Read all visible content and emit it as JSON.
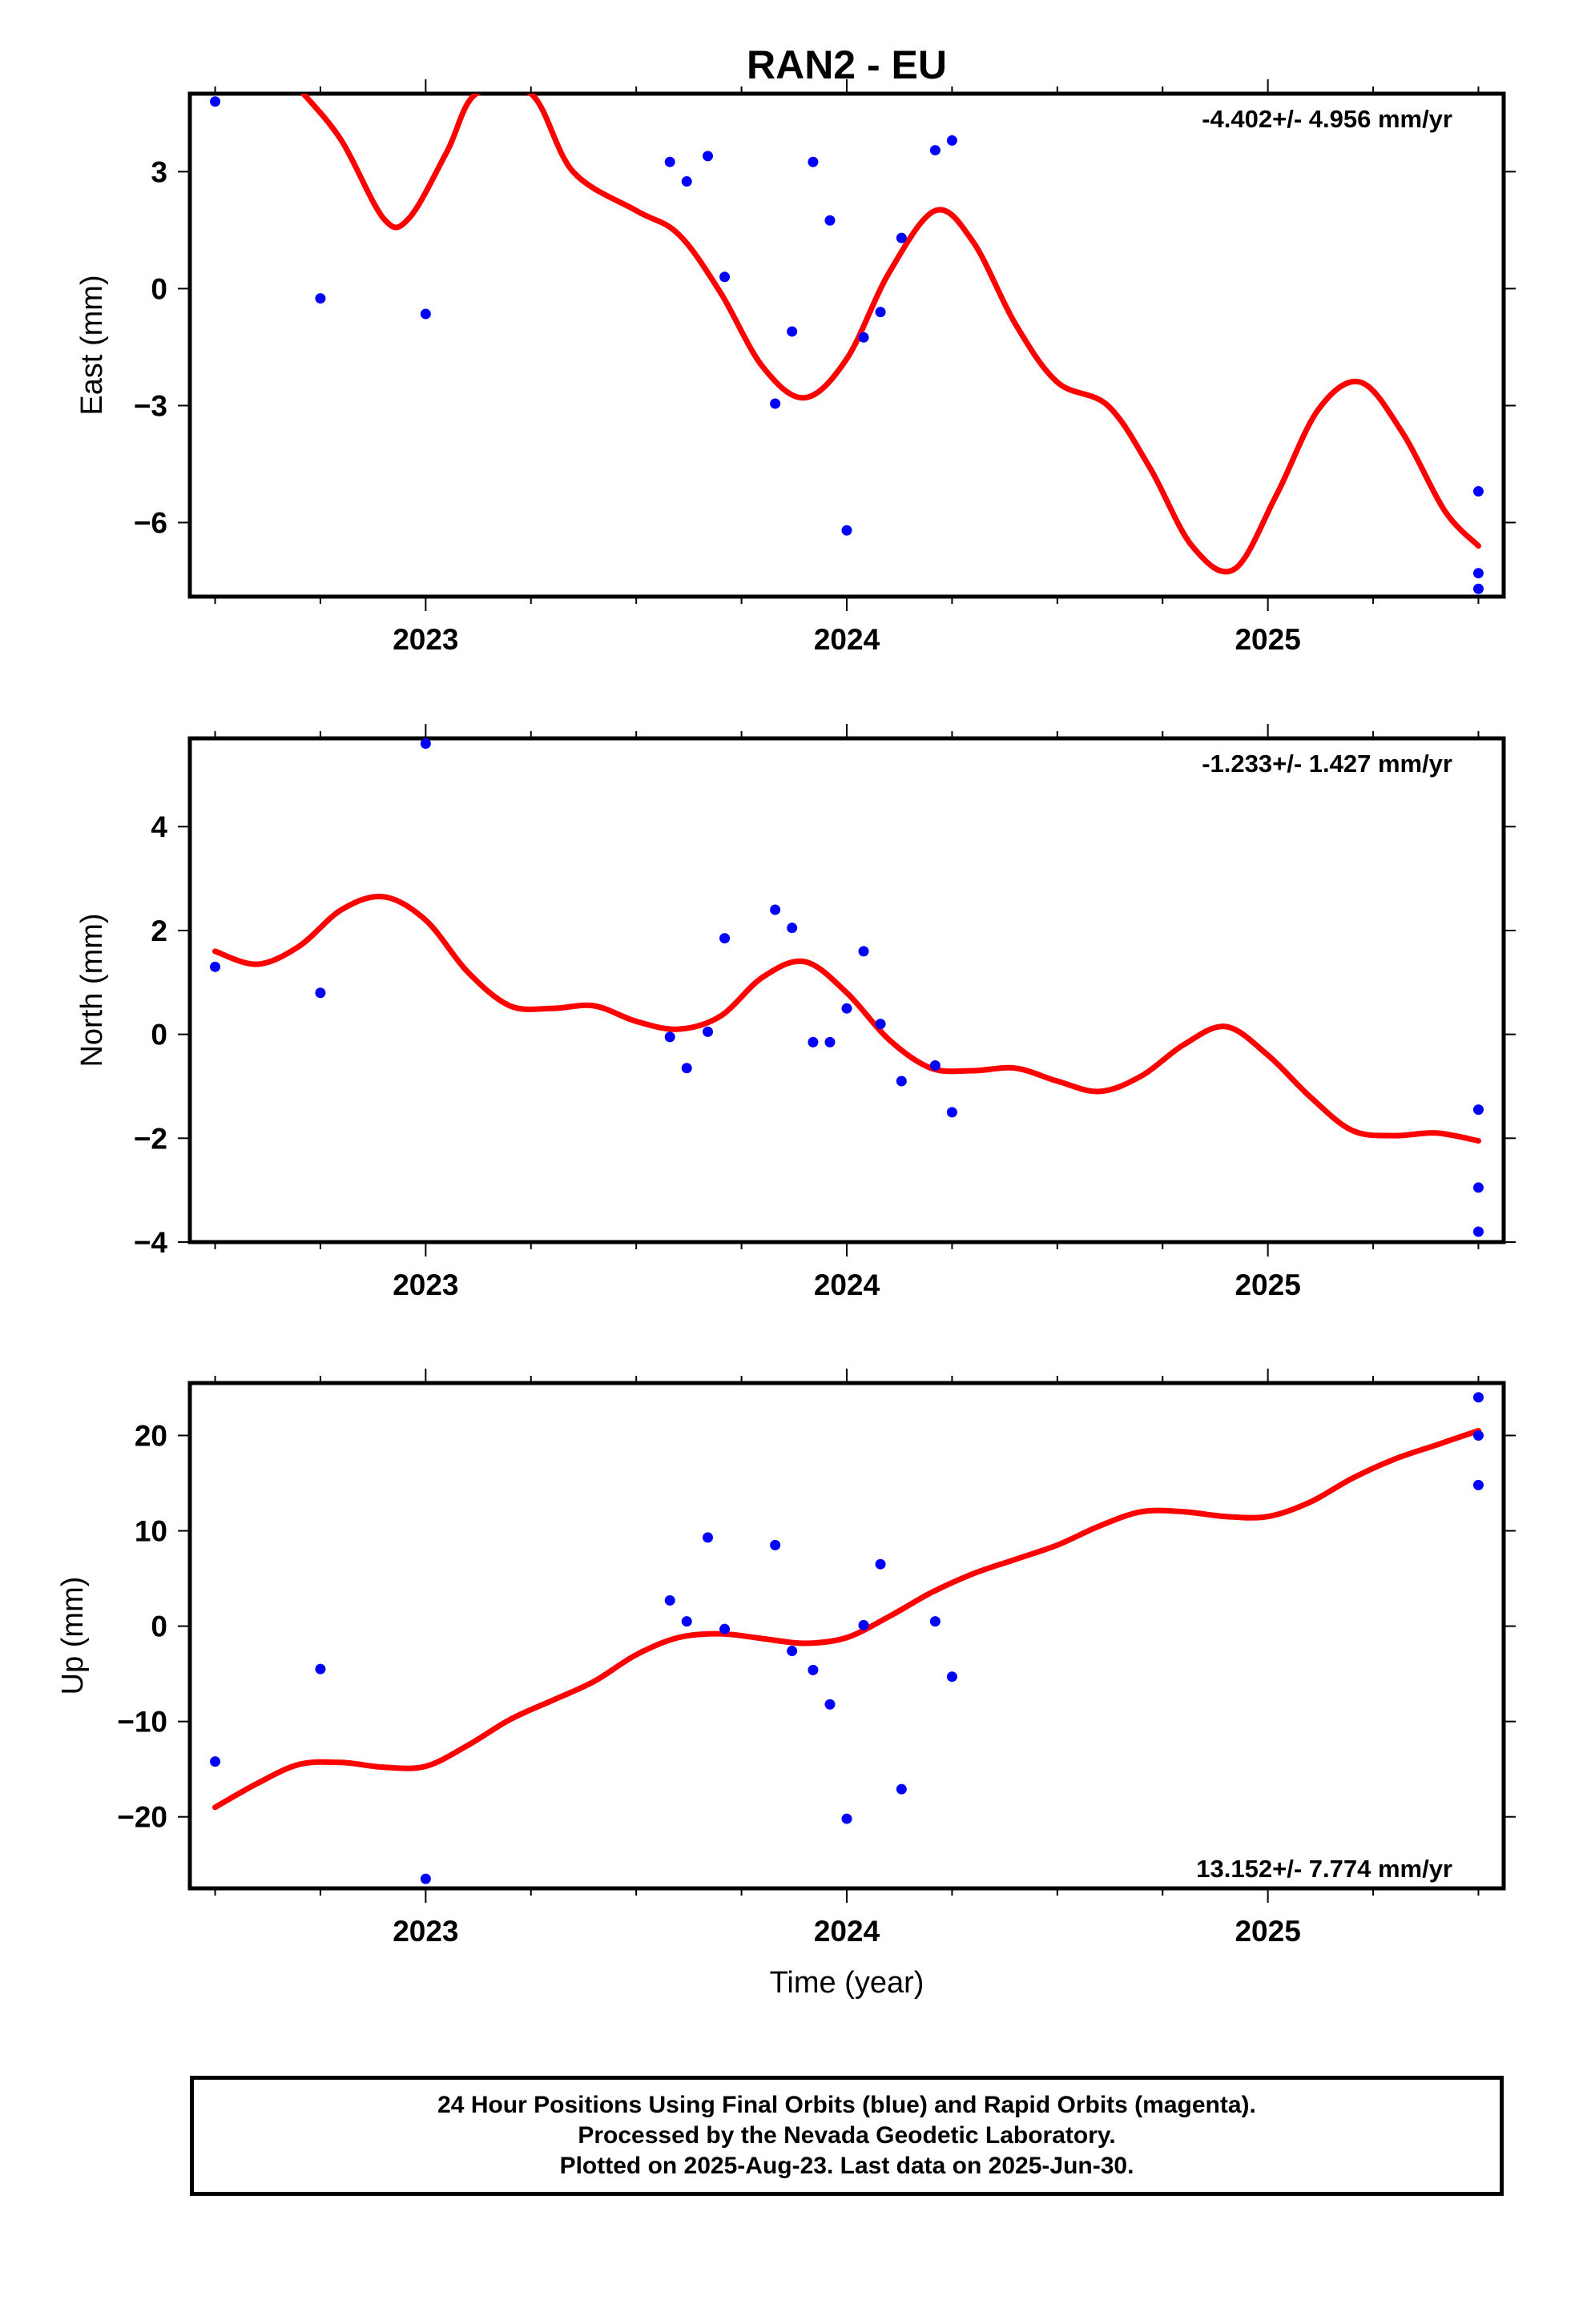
{
  "title": "RAN2 - EU",
  "colors": {
    "data_points": "#0000ff",
    "fit_curve": "#ff0000",
    "frame": "#000000"
  },
  "chart_data": [
    {
      "type": "scatter",
      "ylabel": "East (mm)",
      "xlabel": "",
      "rate_label": "-4.402+/- 4.956 mm/yr",
      "rate_position": "top-right",
      "xlim": [
        2022.44,
        2025.56
      ],
      "ylim": [
        -7.9,
        5.0
      ],
      "x_ticks": [
        2023,
        2024,
        2025
      ],
      "x_tick_labels": [
        "2023",
        "2024",
        "2025"
      ],
      "y_ticks": [
        -6,
        -3,
        0,
        3
      ],
      "y_tick_labels": [
        "−6",
        "−3",
        "0",
        "3"
      ],
      "grid": false,
      "series": [
        {
          "kind": "points",
          "x": [
            2022.5,
            2022.75,
            2023.0,
            2023.58,
            2023.62,
            2023.67,
            2023.71,
            2023.83,
            2023.87,
            2023.92,
            2023.96,
            2024.0,
            2024.04,
            2024.08,
            2024.13,
            2024.21,
            2024.25,
            2025.5,
            2025.5,
            2025.5
          ],
          "y": [
            4.8,
            -0.25,
            -0.65,
            3.25,
            2.75,
            3.4,
            0.3,
            -2.95,
            -1.1,
            3.25,
            1.75,
            -6.2,
            -1.25,
            -0.6,
            1.3,
            3.55,
            3.8,
            -5.2,
            -7.3,
            -7.7
          ]
        },
        {
          "kind": "fit",
          "x": [
            2022.71,
            2022.8,
            2022.9,
            2022.96,
            2023.05,
            2023.12,
            2023.25,
            2023.35,
            2023.5,
            2023.6,
            2023.7,
            2023.8,
            2023.9,
            2024.0,
            2024.1,
            2024.21,
            2024.3,
            2024.4,
            2024.5,
            2024.62,
            2024.72,
            2024.82,
            2024.92,
            2025.02,
            2025.12,
            2025.22,
            2025.32,
            2025.42,
            2025.5
          ],
          "y": [
            5.0,
            3.8,
            1.8,
            1.8,
            3.5,
            5.0,
            5.0,
            3.0,
            2.0,
            1.4,
            -0.1,
            -2.0,
            -2.8,
            -1.8,
            0.4,
            2.0,
            1.2,
            -0.9,
            -2.4,
            -3.0,
            -4.6,
            -6.6,
            -7.2,
            -5.3,
            -3.1,
            -2.4,
            -3.7,
            -5.7,
            -6.6
          ]
        }
      ]
    },
    {
      "type": "scatter",
      "ylabel": "North (mm)",
      "xlabel": "",
      "rate_label": "-1.233+/- 1.427 mm/yr",
      "rate_position": "top-right",
      "xlim": [
        2022.44,
        2025.56
      ],
      "ylim": [
        -4.0,
        5.7
      ],
      "x_ticks": [
        2023,
        2024,
        2025
      ],
      "x_tick_labels": [
        "2023",
        "2024",
        "2025"
      ],
      "y_ticks": [
        -4,
        -2,
        0,
        2,
        4
      ],
      "y_tick_labels": [
        "−4",
        "−2",
        "0",
        "2",
        "4"
      ],
      "grid": false,
      "series": [
        {
          "kind": "points",
          "x": [
            2022.5,
            2022.75,
            2023.0,
            2023.58,
            2023.62,
            2023.67,
            2023.71,
            2023.83,
            2023.87,
            2023.92,
            2023.96,
            2024.0,
            2024.04,
            2024.08,
            2024.13,
            2024.21,
            2024.25,
            2025.5,
            2025.5,
            2025.5
          ],
          "y": [
            1.3,
            0.8,
            5.6,
            -0.05,
            -0.65,
            0.05,
            1.85,
            2.4,
            2.05,
            -0.15,
            -0.15,
            0.5,
            1.6,
            0.2,
            -0.9,
            -0.6,
            -1.5,
            -1.45,
            -2.95,
            -3.8
          ]
        },
        {
          "kind": "fit",
          "x": [
            2022.5,
            2022.6,
            2022.7,
            2022.8,
            2022.9,
            2023.0,
            2023.1,
            2023.2,
            2023.3,
            2023.4,
            2023.5,
            2023.6,
            2023.7,
            2023.8,
            2023.9,
            2024.0,
            2024.1,
            2024.2,
            2024.3,
            2024.4,
            2024.5,
            2024.6,
            2024.7,
            2024.8,
            2024.9,
            2025.0,
            2025.1,
            2025.2,
            2025.3,
            2025.4,
            2025.5
          ],
          "y": [
            1.6,
            1.35,
            1.7,
            2.4,
            2.65,
            2.2,
            1.2,
            0.55,
            0.5,
            0.55,
            0.25,
            0.1,
            0.35,
            1.1,
            1.4,
            0.8,
            -0.1,
            -0.65,
            -0.7,
            -0.65,
            -0.9,
            -1.1,
            -0.8,
            -0.2,
            0.15,
            -0.4,
            -1.2,
            -1.85,
            -1.95,
            -1.9,
            -2.05
          ]
        }
      ]
    },
    {
      "type": "scatter",
      "ylabel": "Up (mm)",
      "xlabel": "Time (year)",
      "rate_label": "13.152+/- 7.774 mm/yr",
      "rate_position": "bottom-right",
      "xlim": [
        2022.44,
        2025.56
      ],
      "ylim": [
        -27.5,
        25.5
      ],
      "x_ticks": [
        2023,
        2024,
        2025
      ],
      "x_tick_labels": [
        "2023",
        "2024",
        "2025"
      ],
      "y_ticks": [
        -20,
        -10,
        0,
        10,
        20
      ],
      "y_tick_labels": [
        "−20",
        "−10",
        "0",
        "10",
        "20"
      ],
      "grid": false,
      "series": [
        {
          "kind": "points",
          "x": [
            2022.5,
            2022.75,
            2023.0,
            2023.58,
            2023.62,
            2023.67,
            2023.71,
            2023.83,
            2023.87,
            2023.92,
            2023.96,
            2024.0,
            2024.04,
            2024.08,
            2024.13,
            2024.21,
            2024.25,
            2025.5,
            2025.5,
            2025.5
          ],
          "y": [
            -14.2,
            -4.5,
            -26.5,
            2.7,
            0.5,
            9.3,
            -0.3,
            8.5,
            -2.6,
            -4.6,
            -8.2,
            -20.2,
            0.1,
            6.5,
            -17.1,
            0.5,
            -5.3,
            24.0,
            20.0,
            14.8
          ]
        },
        {
          "kind": "fit",
          "x": [
            2022.5,
            2022.6,
            2022.7,
            2022.8,
            2022.9,
            2023.0,
            2023.1,
            2023.2,
            2023.3,
            2023.4,
            2023.5,
            2023.6,
            2023.7,
            2023.8,
            2023.9,
            2024.0,
            2024.1,
            2024.2,
            2024.3,
            2024.4,
            2024.5,
            2024.6,
            2024.7,
            2024.8,
            2024.9,
            2025.0,
            2025.1,
            2025.2,
            2025.3,
            2025.4,
            2025.5
          ],
          "y": [
            -19.0,
            -16.5,
            -14.5,
            -14.3,
            -14.8,
            -14.7,
            -12.5,
            -9.8,
            -7.8,
            -5.8,
            -3.0,
            -1.2,
            -0.8,
            -1.3,
            -1.8,
            -1.2,
            1.0,
            3.5,
            5.5,
            7.0,
            8.5,
            10.5,
            12.0,
            12.0,
            11.5,
            11.5,
            13.0,
            15.5,
            17.5,
            19.0,
            20.5
          ]
        }
      ]
    }
  ],
  "footer": {
    "line1": "24 Hour Positions Using Final Orbits (blue) and Rapid Orbits (magenta).",
    "line2": "Processed by the Nevada Geodetic Laboratory.",
    "line3": "Plotted on 2025-Aug-23. Last data on 2025-Jun-30."
  }
}
